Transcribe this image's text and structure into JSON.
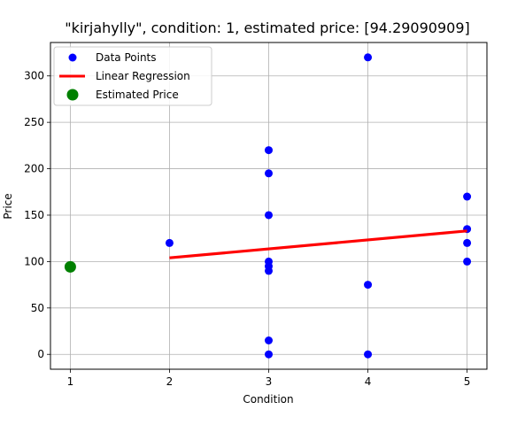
{
  "chart_data": {
    "type": "scatter",
    "title": "\"kirjahylly\", condition: 1, estimated price: [94.29090909]",
    "xlabel": "Condition",
    "ylabel": "Price",
    "xlim": [
      0.8,
      5.2
    ],
    "ylim": [
      -16,
      336
    ],
    "x_ticks": [
      "1",
      "2",
      "3",
      "4",
      "5"
    ],
    "y_ticks": [
      "0",
      "50",
      "100",
      "150",
      "200",
      "250",
      "300"
    ],
    "grid": true,
    "legend_position": "top-left",
    "legend": {
      "data_points": "Data Points",
      "regression": "Linear Regression",
      "estimated": "Estimated Price"
    },
    "colors": {
      "data_points": "#0000ff",
      "regression": "#ff0000",
      "estimated": "#008000"
    },
    "series": [
      {
        "name": "Data Points",
        "points": [
          {
            "x": 2,
            "y": 120
          },
          {
            "x": 3,
            "y": 220
          },
          {
            "x": 3,
            "y": 195
          },
          {
            "x": 3,
            "y": 150
          },
          {
            "x": 3,
            "y": 100
          },
          {
            "x": 3,
            "y": 95
          },
          {
            "x": 3,
            "y": 90
          },
          {
            "x": 3,
            "y": 15
          },
          {
            "x": 3,
            "y": 0
          },
          {
            "x": 4,
            "y": 320
          },
          {
            "x": 4,
            "y": 75
          },
          {
            "x": 4,
            "y": 0
          },
          {
            "x": 5,
            "y": 170
          },
          {
            "x": 5,
            "y": 135
          },
          {
            "x": 5,
            "y": 120
          },
          {
            "x": 5,
            "y": 100
          }
        ]
      },
      {
        "name": "Linear Regression",
        "line": [
          {
            "x": 2,
            "y": 104
          },
          {
            "x": 5,
            "y": 133
          }
        ]
      },
      {
        "name": "Estimated Price",
        "points": [
          {
            "x": 1,
            "y": 94.29
          }
        ]
      }
    ]
  }
}
